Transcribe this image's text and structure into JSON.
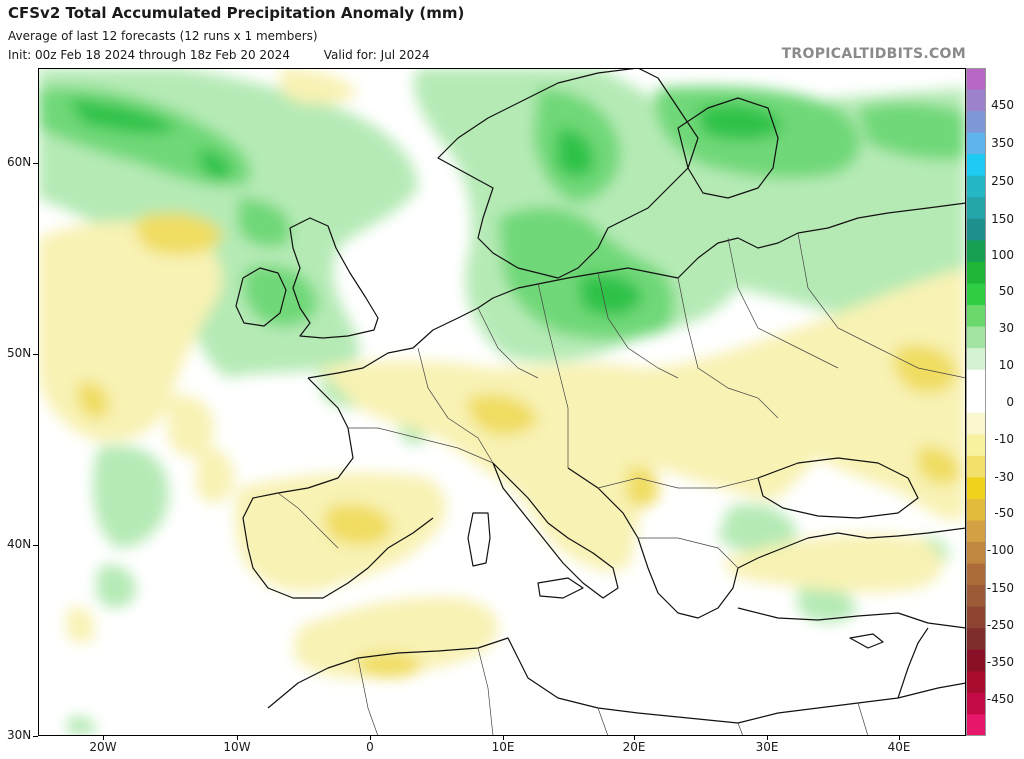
{
  "header": {
    "title": "CFSv2 Total Accumulated Precipitation Anomaly (mm)",
    "subtitle": "Average of last 12 forecasts (12 runs x 1 members)",
    "init": "Init: 00z Feb 18 2024 through 18z Feb 20 2024",
    "valid": "Valid for: Jul 2024"
  },
  "brand": "TROPICALTIDBITS.COM",
  "map": {
    "lat_labels": [
      "60N",
      "50N",
      "40N",
      "30N"
    ],
    "lon_labels": [
      "20W",
      "10W",
      "0",
      "10E",
      "20E",
      "30E",
      "40E"
    ],
    "ocean_color": "#ffffff",
    "wet_regions": [
      "North Atlantic",
      "British Isles",
      "Scandinavia",
      "Germany",
      "Poland",
      "Baltic states",
      "Romania"
    ],
    "dry_regions": [
      "Iberian Peninsula",
      "France",
      "Alps",
      "Italy",
      "Balkans",
      "Ukraine",
      "Turkey",
      "Northwest Africa"
    ]
  },
  "colorbar": {
    "levels": [
      "450",
      "350",
      "250",
      "150",
      "100",
      "50",
      "30",
      "10",
      "0",
      "-10",
      "-30",
      "-50",
      "-100",
      "-150",
      "-250",
      "-350",
      "-450"
    ],
    "colors": [
      "#b766c6",
      "#9b82cb",
      "#7f98d8",
      "#5fb4ec",
      "#1ecbf2",
      "#26b7c6",
      "#24a3a8",
      "#1e8f8c",
      "#17a052",
      "#1fb637",
      "#2fcd44",
      "#6ad86b",
      "#a2e5a3",
      "#d3f3d3",
      "#ffffff",
      "#ffffff",
      "#faf7cf",
      "#f7f1a0",
      "#f2e06a",
      "#f0d21c",
      "#e3bb3c",
      "#d3a044",
      "#bf8740",
      "#ab6c3a",
      "#9c5a36",
      "#8d4430",
      "#7e2c2c",
      "#8a1027",
      "#a80c2e",
      "#c40b48",
      "#e7166a"
    ]
  }
}
